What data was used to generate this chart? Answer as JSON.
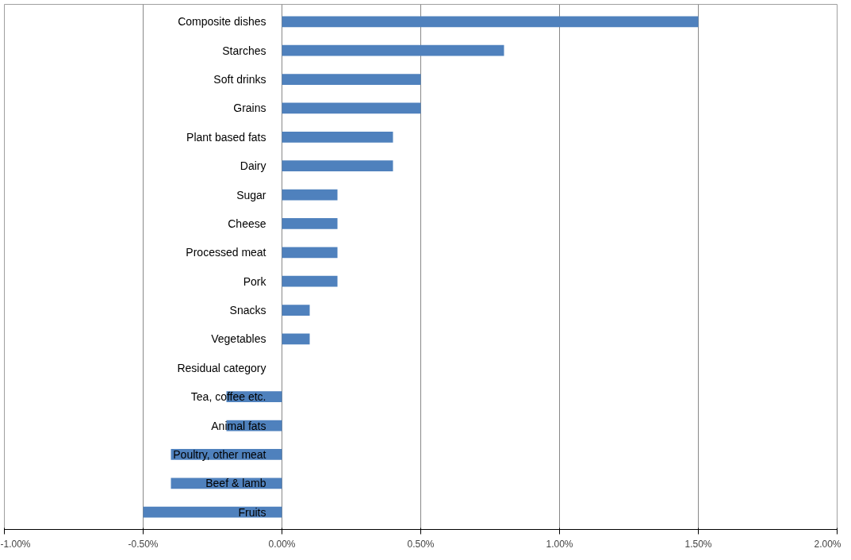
{
  "chart_data": {
    "type": "bar",
    "orientation": "horizontal",
    "categories": [
      "Composite dishes",
      "Starches",
      "Soft drinks",
      "Grains",
      "Plant based fats",
      "Dairy",
      "Sugar",
      "Cheese",
      "Processed meat",
      "Pork",
      "Snacks",
      "Vegetables",
      "Residual category",
      "Tea, coffee etc.",
      "Animal fats",
      "Poultry, other meat",
      "Beef & lamb",
      "Fruits"
    ],
    "values": [
      1.5,
      0.8,
      0.5,
      0.5,
      0.4,
      0.4,
      0.2,
      0.2,
      0.2,
      0.2,
      0.1,
      0.1,
      0,
      -0.2,
      -0.2,
      -0.4,
      -0.4,
      -0.5
    ],
    "color": "#4f81bd",
    "xlim": [
      -1,
      2
    ],
    "xticks": [
      {
        "value": -1,
        "label": "-1.00%"
      },
      {
        "value": -0.5,
        "label": "-0.50%"
      },
      {
        "value": 0,
        "label": "0.00%"
      },
      {
        "value": 0.5,
        "label": "0.50%"
      },
      {
        "value": 1,
        "label": "1.00%"
      },
      {
        "value": 1.5,
        "label": "1.50%"
      },
      {
        "value": 2,
        "label": "2.00%"
      }
    ],
    "grid": "x"
  }
}
